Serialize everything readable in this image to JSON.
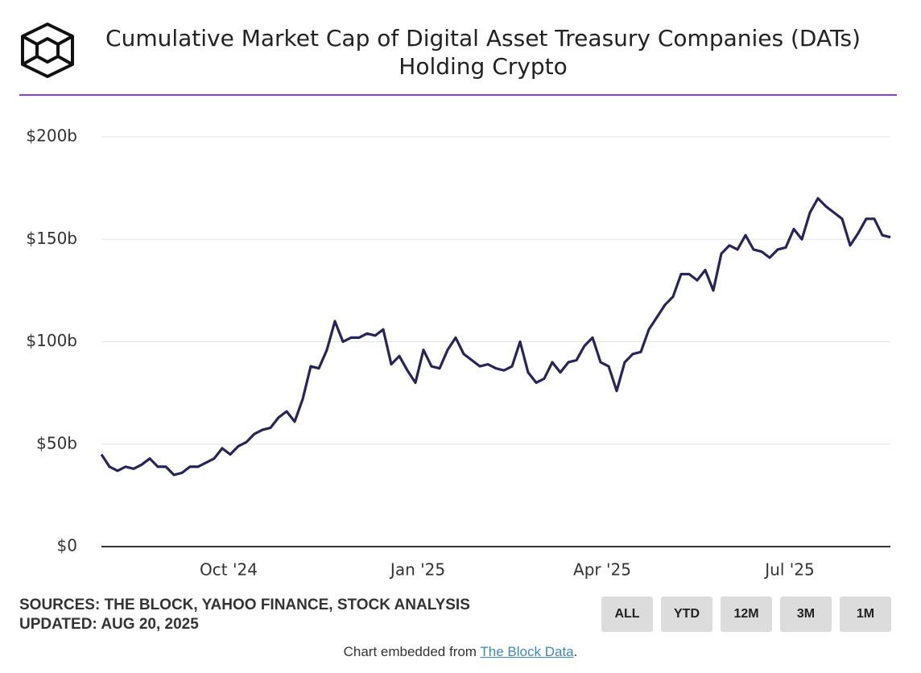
{
  "chart_data": {
    "type": "line",
    "title": "Cumulative Market Cap of Digital Asset Treasury Companies (DATs)",
    "title_line2": "Holding Crypto",
    "series": [
      {
        "color": "#27245a",
        "values": [
          45,
          39,
          37,
          39,
          38,
          40,
          43,
          39,
          39,
          35,
          36,
          39,
          39,
          41,
          43,
          48,
          45,
          49,
          51,
          55,
          57,
          58,
          63,
          66,
          61,
          72,
          88,
          87,
          96,
          110,
          100,
          102,
          102,
          104,
          103,
          106,
          89,
          93,
          86,
          80,
          96,
          88,
          87,
          96,
          102,
          94,
          91,
          88,
          89,
          87,
          86,
          88,
          100,
          85,
          80,
          82,
          90,
          85,
          90,
          91,
          98,
          102,
          90,
          88,
          76,
          90,
          94,
          95,
          106,
          112,
          118,
          122,
          133,
          133,
          130,
          135,
          125,
          143,
          147,
          145,
          152,
          145,
          144,
          141,
          145,
          146,
          155,
          150,
          163,
          170,
          166,
          163,
          160,
          147,
          153,
          160,
          160,
          152,
          151
        ]
      }
    ],
    "xlim": [
      0,
      98
    ],
    "xticks": [
      {
        "value": 15.8,
        "label": "Oct '24"
      },
      {
        "value": 39.3,
        "label": "Jan '25"
      },
      {
        "value": 62.2,
        "label": "Apr '25"
      },
      {
        "value": 85.5,
        "label": "Jul '25"
      }
    ],
    "ylim": [
      0,
      200
    ],
    "yticks": [
      {
        "value": 0,
        "label": "$0"
      },
      {
        "value": 50,
        "label": "$50b"
      },
      {
        "value": 100,
        "label": "$100b"
      },
      {
        "value": 150,
        "label": "$150b"
      },
      {
        "value": 200,
        "label": "$200b"
      }
    ],
    "grid": true,
    "sources": "SOURCES: THE BLOCK, YAHOO FINANCE, STOCK ANALYSIS",
    "updated": "UPDATED: AUG 20, 2025",
    "buttons": [
      "ALL",
      "YTD",
      "12M",
      "3M",
      "1M"
    ],
    "footer": {
      "prefix": "Chart embedded from",
      "link": "The Block Data",
      "suffix": "."
    }
  }
}
